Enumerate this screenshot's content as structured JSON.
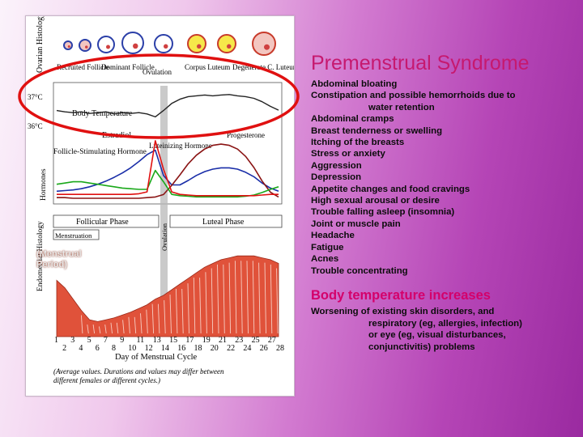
{
  "slide": {
    "title": "Premenstrual Syndrome",
    "symptoms": [
      "Abdominal bloating",
      "Constipation and possible hemorrhoids due to",
      "water retention",
      "Abdominal cramps",
      "Breast tenderness or swelling",
      "Itching of the breasts",
      "Stress or anxiety",
      "Aggression",
      "Depression",
      "Appetite changes and food cravings",
      "High sexual arousal or desire",
      "Trouble falling asleep (insomnia)",
      "Joint or muscle pain",
      "Headache",
      "Fatigue",
      "Acnes",
      "Trouble concentrating"
    ],
    "temperature_heading": "Body temperature increases",
    "worsening_lines": [
      "Worsening of existing skin disorders, and",
      "respiratory    (eg, allergies, infection)",
      "or eye (eg, visual disturbances,",
      "conjunctivitis) problems"
    ],
    "overlay_label": "(Menstrual Period)",
    "colors": {
      "title": "#c6196f",
      "heading": "#d4006a",
      "ellipse": "#e01010",
      "estradiol": "#1a2ea8",
      "progesterone": "#8a1414",
      "fsh": "#1aa81a",
      "lh": "#e01010",
      "endometrium": "#e0523a"
    }
  },
  "figure": {
    "ovarian_label": "Ovarian Histology",
    "stages": [
      "Recruited Follicle",
      "Dominant Follicle",
      "Ovulation",
      "Corpus Luteum",
      "Degenerate C. Luteum"
    ],
    "temp_high": "37°C",
    "temp_low": "36°C",
    "body_temp_label": "Body Temperature",
    "estradiol_label": "Estradiol",
    "progesterone_label": "Progesterone",
    "lh_label": "Luteinizing Hormone",
    "fsh_label": "Follicle-Stimulating Hormone",
    "hormones_axis": "Hormones",
    "follicular_phase": "Follicular Phase",
    "luteal_phase": "Luteal Phase",
    "menstruation": "Menstruation",
    "ovulation_vertical": "Ovulation",
    "endometrial_label": "Endometrial Histology",
    "day_ticks_top": [
      "1",
      "3",
      "5",
      "7",
      "9",
      "11",
      "13",
      "15",
      "17",
      "19",
      "21",
      "23",
      "25",
      "27"
    ],
    "day_ticks_bottom": [
      "2",
      "4",
      "6",
      "8",
      "10",
      "12",
      "14",
      "16",
      "18",
      "20",
      "22",
      "24",
      "26",
      "28"
    ],
    "x_axis_title": "Day of Menstrual Cycle",
    "footnote_1": "(Average values. Durations and values may differ between",
    "footnote_2": "different females or different cycles.)"
  },
  "chart_data": {
    "type": "line",
    "x": [
      1,
      2,
      3,
      4,
      5,
      6,
      7,
      8,
      9,
      10,
      11,
      12,
      13,
      14,
      15,
      16,
      17,
      18,
      19,
      20,
      21,
      22,
      23,
      24,
      25,
      26,
      27,
      28
    ],
    "xlabel": "Day of Menstrual Cycle",
    "ylabel": "Hormones",
    "series": [
      {
        "name": "Body Temperature",
        "values": [
          0.45,
          0.42,
          0.4,
          0.42,
          0.38,
          0.4,
          0.42,
          0.37,
          0.4,
          0.38,
          0.4,
          0.37,
          0.3,
          0.45,
          0.62,
          0.72,
          0.78,
          0.8,
          0.82,
          0.8,
          0.82,
          0.83,
          0.8,
          0.78,
          0.74,
          0.66,
          0.55,
          0.46
        ]
      },
      {
        "name": "Estradiol",
        "values": [
          0.15,
          0.16,
          0.17,
          0.19,
          0.22,
          0.26,
          0.31,
          0.37,
          0.44,
          0.52,
          0.62,
          0.73,
          0.8,
          0.4,
          0.25,
          0.25,
          0.32,
          0.4,
          0.46,
          0.5,
          0.52,
          0.52,
          0.5,
          0.45,
          0.38,
          0.28,
          0.2,
          0.15
        ]
      },
      {
        "name": "Progesterone",
        "values": [
          0.05,
          0.05,
          0.04,
          0.04,
          0.04,
          0.04,
          0.04,
          0.04,
          0.04,
          0.04,
          0.04,
          0.05,
          0.06,
          0.1,
          0.25,
          0.42,
          0.6,
          0.74,
          0.84,
          0.9,
          0.92,
          0.9,
          0.84,
          0.72,
          0.54,
          0.32,
          0.14,
          0.06
        ]
      },
      {
        "name": "Follicle-Stimulating Hormone",
        "values": [
          0.26,
          0.28,
          0.3,
          0.3,
          0.28,
          0.26,
          0.24,
          0.22,
          0.2,
          0.19,
          0.18,
          0.18,
          0.48,
          0.3,
          0.1,
          0.08,
          0.07,
          0.06,
          0.06,
          0.06,
          0.06,
          0.06,
          0.06,
          0.07,
          0.09,
          0.13,
          0.18,
          0.22
        ]
      },
      {
        "name": "Luteinizing Hormone",
        "values": [
          0.1,
          0.1,
          0.1,
          0.1,
          0.1,
          0.1,
          0.1,
          0.1,
          0.1,
          0.1,
          0.11,
          0.14,
          0.95,
          0.5,
          0.14,
          0.1,
          0.09,
          0.08,
          0.08,
          0.08,
          0.08,
          0.08,
          0.08,
          0.08,
          0.08,
          0.09,
          0.1,
          0.1
        ]
      },
      {
        "name": "Endometrial thickness",
        "values": [
          0.6,
          0.52,
          0.4,
          0.28,
          0.18,
          0.16,
          0.18,
          0.2,
          0.23,
          0.26,
          0.3,
          0.34,
          0.4,
          0.44,
          0.5,
          0.56,
          0.62,
          0.68,
          0.74,
          0.78,
          0.82,
          0.84,
          0.86,
          0.86,
          0.86,
          0.84,
          0.82,
          0.78
        ]
      }
    ]
  }
}
